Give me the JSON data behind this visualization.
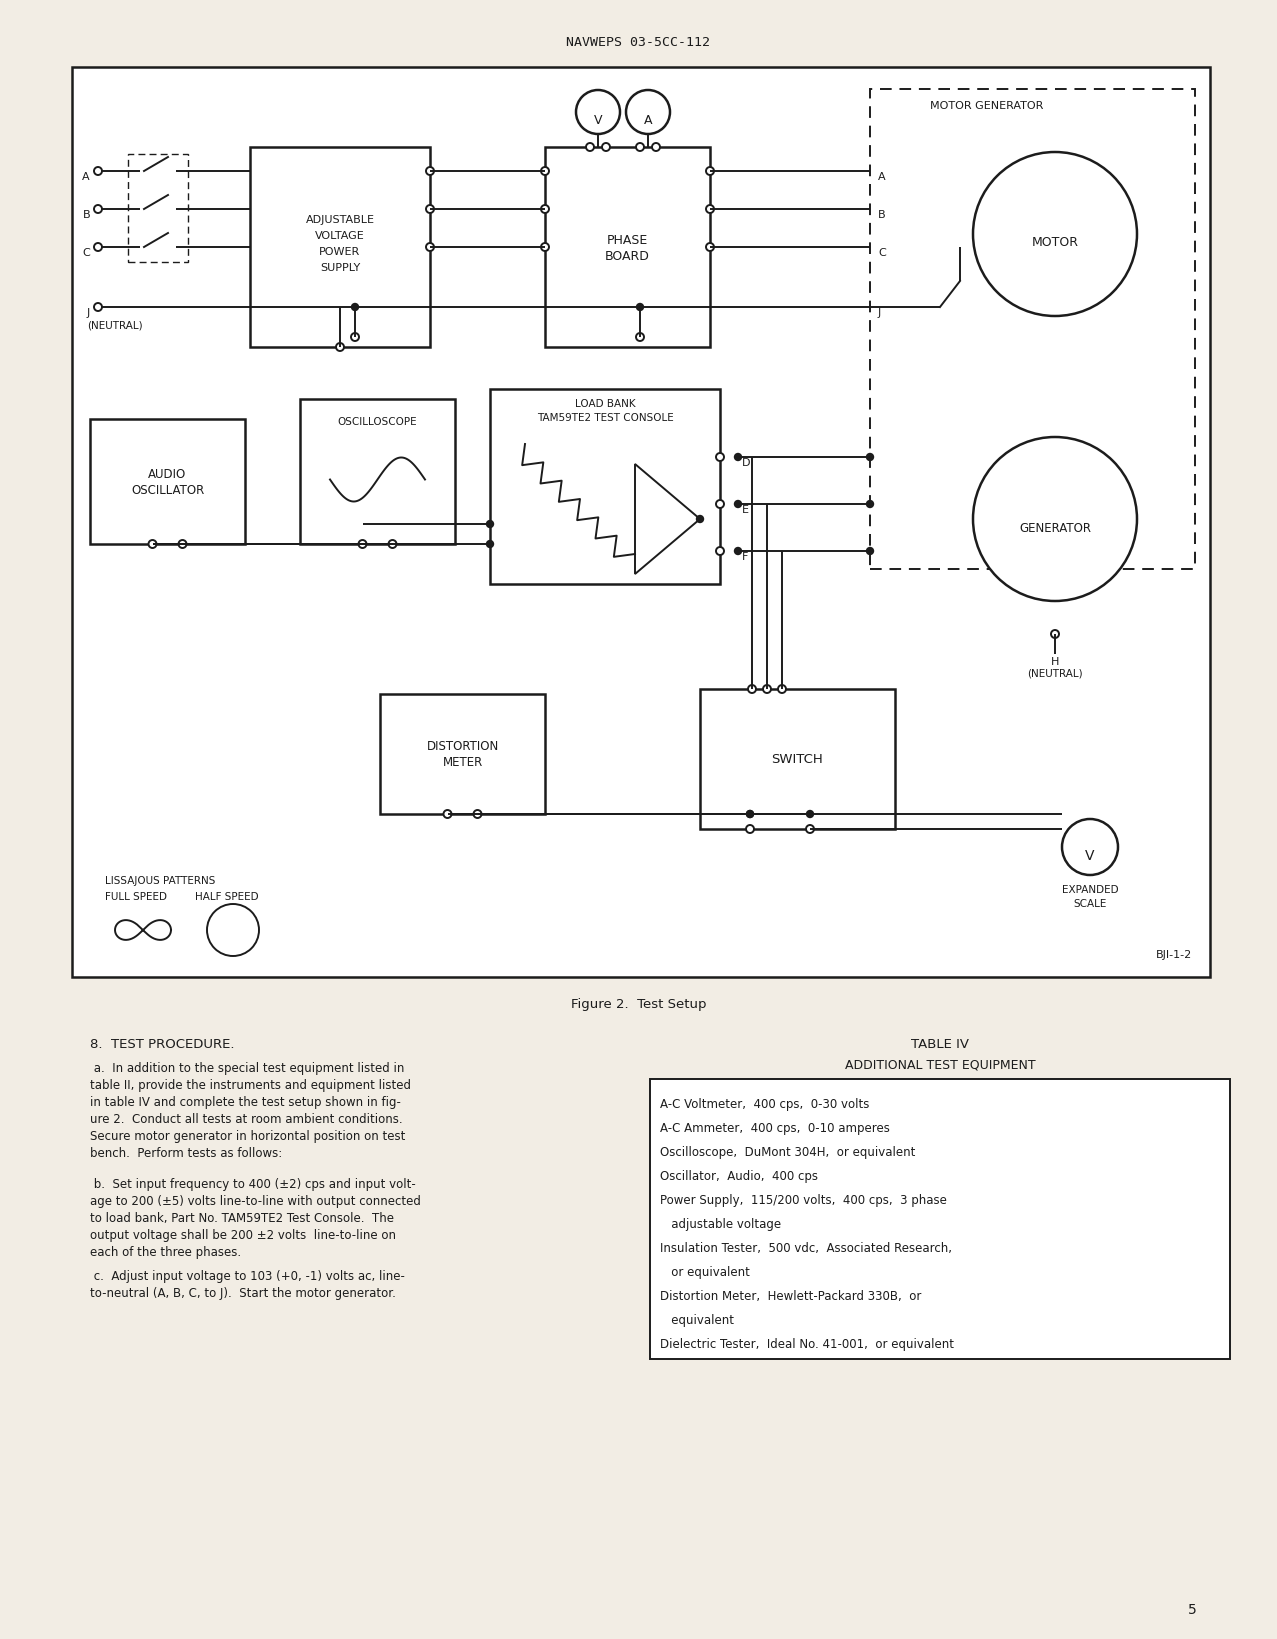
{
  "page_title": "NAVWEPS 03-5CC-112",
  "figure_caption": "Figure 2.  Test Setup",
  "figure_id": "BJI-1-2",
  "page_number": "5",
  "bg_color": "#f2ede4",
  "diagram_bg": "#ffffff",
  "section_header": "8.  TEST PROCEDURE.",
  "table_header": "TABLE IV",
  "table_subheader": "ADDITIONAL TEST EQUIPMENT",
  "table_items": [
    "A-C Voltmeter,  400 cps,  0-30 volts",
    "A-C Ammeter,  400 cps,  0-10 amperes",
    "Oscilloscope,  DuMont 304H,  or equivalent",
    "Oscillator,  Audio,  400 cps",
    "Power Supply,  115/200 volts,  400 cps,  3 phase",
    "   adjustable voltage",
    "Insulation Tester,  500 vdc,  Associated Research,",
    "   or equivalent",
    "Distortion Meter,  Hewlett-Packard 330B,  or",
    "   equivalent",
    "Dielectric Tester,  Ideal No. 41-001,  or equivalent"
  ],
  "para_a_lines": [
    " a.  In addition to the special test equipment listed in",
    "table II, provide the instruments and equipment listed",
    "in table IV and complete the test setup shown in fig-",
    "ure 2.  Conduct all tests at room ambient conditions.",
    "Secure motor generator in horizontal position on test",
    "bench.  Perform tests as follows:"
  ],
  "para_b_lines": [
    " b.  Set input frequency to 400 (±2) cps and input volt-",
    "age to 200 (±5) volts line-to-line with output connected",
    "to load bank, Part No. TAM59TE2 Test Console.  The",
    "output voltage shall be 200 ±2 volts  line-to-line on",
    "each of the three phases."
  ],
  "para_c_lines": [
    " c.  Adjust input voltage to 103 (+0, -1) volts ac, line-",
    "to-neutral (A, B, C, to J).  Start the motor generator."
  ]
}
